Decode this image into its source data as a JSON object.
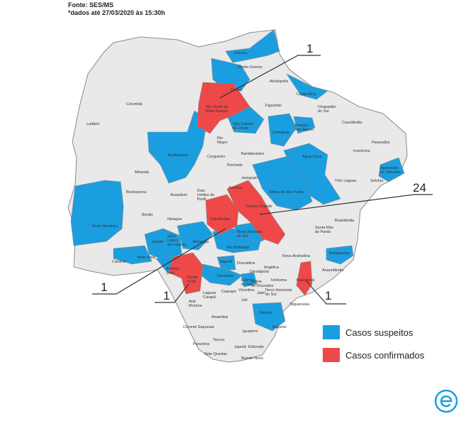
{
  "header": {
    "source": "Fonte: SES/MS",
    "date_note": "*dados até 27/03/2020 às 15:30h"
  },
  "colors": {
    "suspected": "#1a9ee0",
    "confirmed": "#ef4848",
    "none": "#e9e9e9",
    "border": "#8a8a8a"
  },
  "legend": {
    "suspected_label": "Casos suspeitos",
    "confirmed_label": "Casos confirmados"
  },
  "callouts": {
    "rio_verde": "1",
    "campo_grande": "24",
    "sidrolandia": "1",
    "ponta_pora": "1",
    "batayporã": "1"
  },
  "municipalities": {
    "sonora": "Sonora",
    "pedro_gomes": "Pedro Gomes",
    "alcinopolis": "Alcinópolis",
    "coxim": "Coxim",
    "costa_rica": "Costa Rica",
    "rio_verde": "Rio Verde de\nMato Grosso",
    "figueirao": "Figueirão",
    "chapadao": "Chapadão\ndo Sul",
    "corumba": "Corumbá",
    "ladario": "Ladário",
    "sao_gabriel": "São Gabriel\ndo Oeste",
    "camapua": "Camapuã",
    "paraiso": "Paraíso\ndas Águas",
    "cassilandia": "Cassilândia",
    "paranaiba": "Paranaíba",
    "inocencia": "Inocência",
    "rio_negro": "Rio\nNegro",
    "corguinho": "Corguinho",
    "bandeirantes": "Bandeirantes",
    "agua_clara": "Água Clara",
    "aparecida": "Aparecida\ndo Taboado",
    "aquidauana": "Aquidauana",
    "rochedo": "Rochedo",
    "jaraguari": "Jaraguari",
    "selviria": "Selvíria",
    "tres_lagoas": "Três Lagoas",
    "miranda": "Miranda",
    "dois_irmaos": "Dois\nIrmãos do\nBuriti",
    "terenos": "Terenos",
    "ribas": "Ribas do Rio Pardo",
    "bodoquena": "Bodoquena",
    "anastacio": "Anastácio",
    "campo_grande": "Campo Grande",
    "bonito": "Bonito",
    "nioaque": "Nioaque",
    "sidrolandia": "Sidrolândia",
    "brasilandia": "Brasilândia",
    "porto_murtinho": "Porto Murtinho",
    "nova_alvorada": "Nova Alvorada\ndo Sul",
    "santa_rita": "Santa Rita\ndo Pardo",
    "jardim": "Jardim",
    "guia_lopes": "Guia\nLopes\nda Laguna",
    "maracaju": "Maracaju",
    "rio_brilhante": "Rio Brilhante",
    "bela_vista": "Bela Vista",
    "caracol": "Caracol",
    "nova_andradina": "Nova Andradina",
    "bataguassu": "Bataguassu",
    "itapora": "Itaporã",
    "douradina": "Douradina",
    "antonio_joao": "Antônio\nJoão",
    "dourados": "Dourados",
    "anaurilandia": "Anaurilândia",
    "angelica": "Angélica",
    "deodapolis": "Deodápolis",
    "ponta_pora": "Ponta\nPorã",
    "fatima": "Fátima\ndo Sul",
    "gloria": "Glória\nde Dourados",
    "ivinhema": "Ivinhema",
    "batayporã": "Batayporã",
    "laguna": "Laguna\nCarapã",
    "caarapo": "Caarapó",
    "vicentina": "Vicentina",
    "jatei": "Jateí",
    "novo_horizonte": "Novo Horizonte\ndo Sul",
    "taquarussu": "Taquarussu",
    "juti": "Juti",
    "aral_moreira": "Aral\nMoreira",
    "naviraí": "Naviraí",
    "amambai": "Amambai",
    "coronel_sapucaia": "Coronel Sapucaia",
    "iguatemi": "Iguatemi",
    "itaquirai": "Itaquiraí",
    "tacuru": "Tacuru",
    "paranhos": "Paranhos",
    "sete_quedas": "Sete Quedas",
    "japora": "Japorã",
    "eldorado": "Eldorado",
    "mundo_novo": "Mundo Novo"
  }
}
